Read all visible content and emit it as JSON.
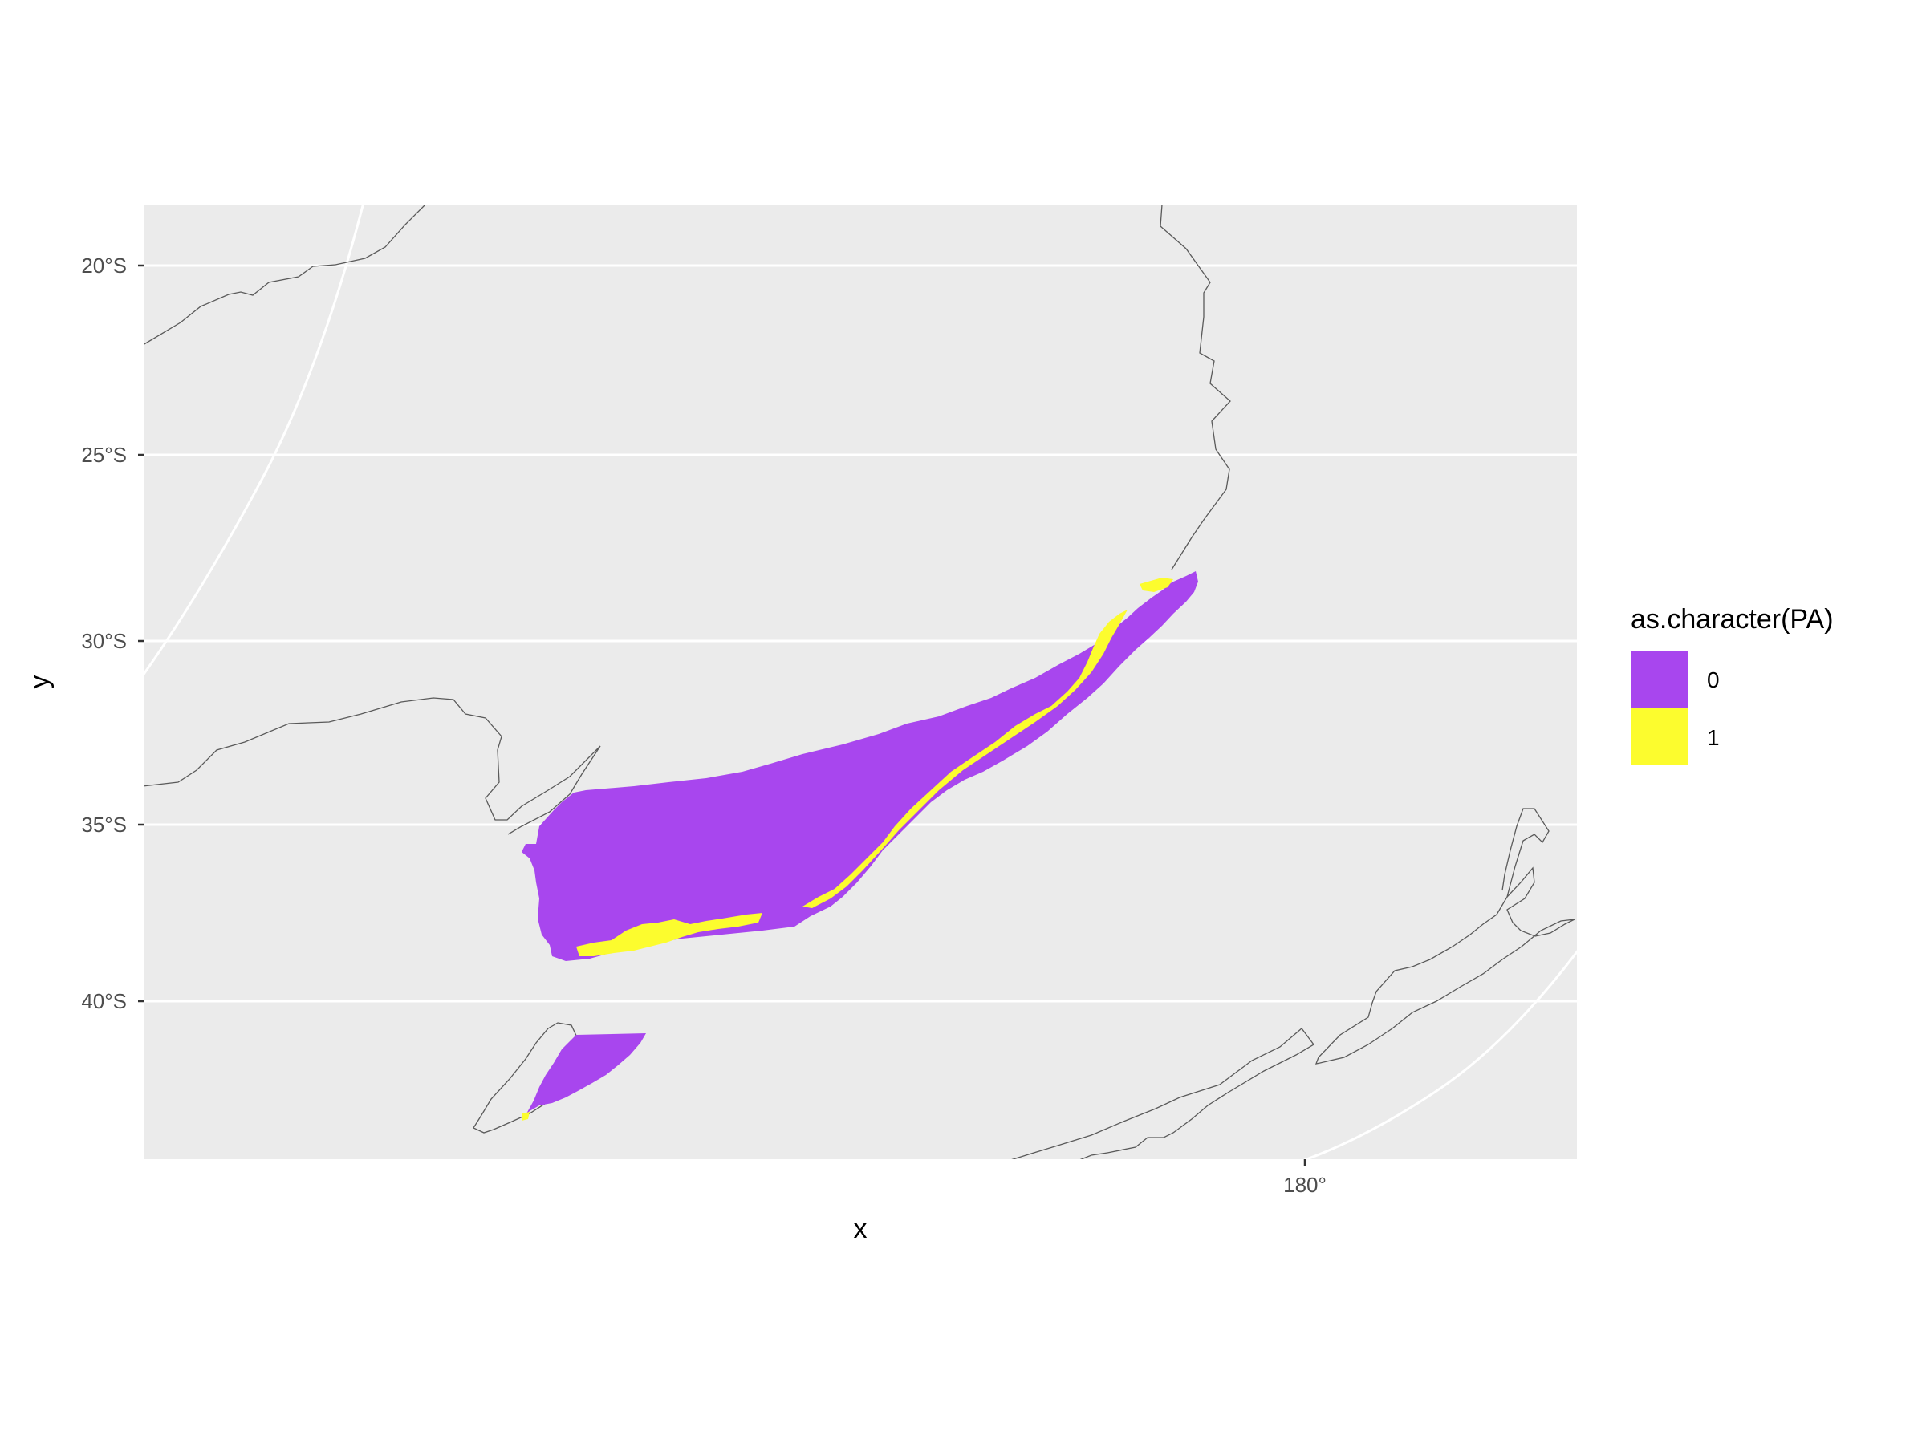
{
  "plot": {
    "x_title": "x",
    "y_title": "y",
    "panel_color": "#EBEBEB",
    "gridline_color": "#FFFFFF",
    "coastline_color": "#5A5A5A"
  },
  "axes": {
    "y_ticks": [
      {
        "value": -20,
        "label": "20°S"
      },
      {
        "value": -25,
        "label": "25°S"
      },
      {
        "value": -30,
        "label": "30°S"
      },
      {
        "value": -35,
        "label": "35°S"
      },
      {
        "value": -40,
        "label": "40°S"
      }
    ],
    "x_ticks": [
      {
        "value": 180,
        "label": "180°"
      }
    ]
  },
  "legend": {
    "title": "as.character(PA)",
    "items": [
      {
        "label": "0",
        "color": "#A846EE"
      },
      {
        "label": "1",
        "color": "#FCFC2E"
      }
    ]
  }
}
